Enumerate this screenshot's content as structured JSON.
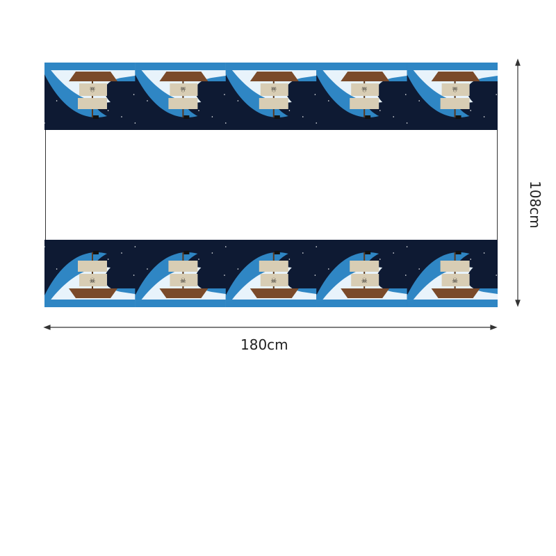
{
  "product": {
    "width_label": "180cm",
    "height_label": "108cm",
    "pattern_repeats": 5,
    "colors": {
      "night_sky": "#0e1a33",
      "wave_blue": "#2f86c4",
      "foam": "#e8f3fb",
      "sail": "#d8cdb4",
      "hull": "#7a4a2a"
    }
  }
}
